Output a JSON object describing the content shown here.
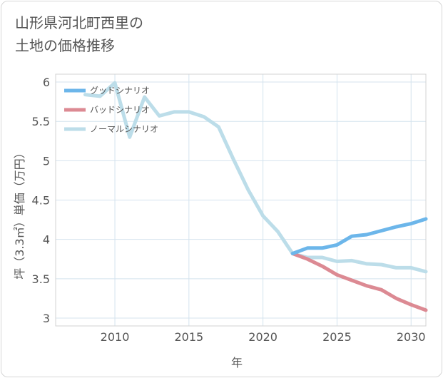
{
  "chart_data": {
    "type": "line",
    "title": "山形県河北町西里の\n土地の価格推移",
    "xlabel": "年",
    "ylabel": "坪（3.3㎡）単価（万円）",
    "xlim": [
      2006,
      2031
    ],
    "ylim": [
      2.9,
      6.1
    ],
    "x_ticks": [
      2010,
      2015,
      2020,
      2025,
      2030
    ],
    "y_ticks": [
      3,
      3.5,
      4,
      4.5,
      5,
      5.5,
      6
    ],
    "y_tick_labels": [
      "3",
      "3.5",
      "4",
      "4.5",
      "5",
      "5.5",
      "6"
    ],
    "grid": true,
    "legend_position": "top-left",
    "series": [
      {
        "name": "グッドシナリオ",
        "color": "#6cb6ea",
        "x": [
          2022,
          2023,
          2024,
          2025,
          2026,
          2027,
          2028,
          2029,
          2030,
          2031
        ],
        "values": [
          3.82,
          3.89,
          3.89,
          3.93,
          4.04,
          4.06,
          4.11,
          4.16,
          4.2,
          4.26
        ]
      },
      {
        "name": "バッドシナリオ",
        "color": "#dc8a93",
        "x": [
          2022,
          2023,
          2024,
          2025,
          2026,
          2027,
          2028,
          2029,
          2030,
          2031
        ],
        "values": [
          3.82,
          3.75,
          3.66,
          3.55,
          3.48,
          3.41,
          3.36,
          3.25,
          3.17,
          3.1
        ]
      },
      {
        "name": "ノーマルシナリオ",
        "color": "#bcdde9",
        "x": [
          2008,
          2009,
          2010,
          2011,
          2012,
          2013,
          2014,
          2015,
          2016,
          2017,
          2018,
          2019,
          2020,
          2021,
          2022,
          2023,
          2024,
          2025,
          2026,
          2027,
          2028,
          2029,
          2030,
          2031
        ],
        "values": [
          5.84,
          5.82,
          5.99,
          5.3,
          5.81,
          5.57,
          5.62,
          5.62,
          5.56,
          5.43,
          5.02,
          4.63,
          4.3,
          4.1,
          3.82,
          3.77,
          3.77,
          3.72,
          3.73,
          3.69,
          3.68,
          3.64,
          3.64,
          3.59
        ]
      }
    ]
  }
}
